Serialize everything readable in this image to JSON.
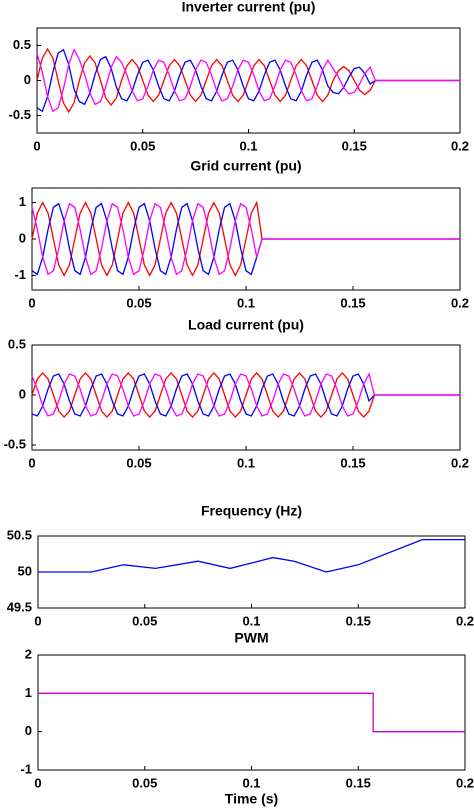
{
  "chart_data": [
    {
      "type": "line",
      "title": "Inverter current (pu)",
      "x": [
        0,
        0.0025,
        0.005,
        0.0075,
        0.01,
        0.0125,
        0.015,
        0.0175,
        0.02,
        0.0225,
        0.025,
        0.0275,
        0.03,
        0.0325,
        0.035,
        0.0375,
        0.04,
        0.0425,
        0.045,
        0.0475,
        0.05,
        0.0525,
        0.055,
        0.0575,
        0.06,
        0.0625,
        0.065,
        0.0675,
        0.07,
        0.0725,
        0.075,
        0.0775,
        0.08,
        0.0825,
        0.085,
        0.0875,
        0.09,
        0.0925,
        0.095,
        0.0975,
        0.1,
        0.1025,
        0.105,
        0.1075,
        0.11,
        0.1125,
        0.115,
        0.1175,
        0.12,
        0.1225,
        0.125,
        0.1275,
        0.13,
        0.1325,
        0.135,
        0.1375,
        0.14,
        0.1425,
        0.145,
        0.1475,
        0.15,
        0.1525,
        0.155,
        0.1575,
        0.16,
        0.1625,
        0.165,
        0.1675,
        0.17,
        0.1725,
        0.175,
        0.1775,
        0.18,
        0.1825,
        0.185,
        0.1875,
        0.19,
        0.1925,
        0.195,
        0.1975,
        0.2
      ],
      "series": [
        {
          "color": "#ff0000",
          "values": [
            0,
            0.32,
            0.45,
            0.32,
            0,
            -0.32,
            -0.45,
            -0.32,
            0,
            0.25,
            0.35,
            0.25,
            0,
            -0.25,
            -0.35,
            -0.25,
            0,
            0.21,
            0.3,
            0.21,
            0,
            -0.21,
            -0.3,
            -0.21,
            0,
            0.21,
            0.3,
            0.21,
            0,
            -0.21,
            -0.3,
            -0.21,
            0,
            0.21,
            0.3,
            0.21,
            0,
            -0.21,
            -0.3,
            -0.21,
            0,
            0.21,
            0.3,
            0.21,
            0,
            -0.21,
            -0.3,
            -0.21,
            0,
            0.21,
            0.3,
            0.21,
            0,
            -0.21,
            -0.3,
            -0.21,
            0,
            0.14,
            0.2,
            0.14,
            0,
            -0.14,
            -0.2,
            -0.14,
            0,
            0,
            0,
            0,
            0,
            0,
            0,
            0,
            0,
            0,
            0,
            0,
            0,
            0,
            0,
            0,
            0
          ]
        },
        {
          "color": "#0000ff",
          "values": [
            -0.39,
            -0.44,
            -0.23,
            0.12,
            0.39,
            0.44,
            0.23,
            -0.12,
            -0.3,
            -0.34,
            -0.18,
            0.09,
            0.3,
            0.34,
            0.18,
            -0.09,
            -0.26,
            -0.29,
            -0.15,
            0.08,
            0.26,
            0.29,
            0.15,
            -0.08,
            -0.26,
            -0.29,
            -0.15,
            0.08,
            0.26,
            0.29,
            0.15,
            -0.08,
            -0.26,
            -0.29,
            -0.15,
            0.08,
            0.26,
            0.29,
            0.15,
            -0.08,
            -0.26,
            -0.29,
            -0.15,
            0.08,
            0.26,
            0.29,
            0.15,
            -0.08,
            -0.26,
            -0.29,
            -0.15,
            0.08,
            0.26,
            0.29,
            0.15,
            -0.08,
            -0.17,
            -0.19,
            -0.1,
            0.05,
            0.17,
            0.19,
            0.1,
            -0.05,
            0,
            0,
            0,
            0,
            0,
            0,
            0,
            0,
            0,
            0,
            0,
            0,
            0,
            0,
            0,
            0,
            0
          ]
        },
        {
          "color": "#ff00ff",
          "values": [
            0.39,
            0.12,
            -0.23,
            -0.44,
            -0.39,
            -0.12,
            0.23,
            0.44,
            0.3,
            0.09,
            -0.18,
            -0.34,
            -0.3,
            -0.09,
            0.18,
            0.34,
            0.26,
            0.08,
            -0.15,
            -0.29,
            -0.26,
            -0.08,
            0.15,
            0.29,
            0.26,
            0.08,
            -0.15,
            -0.29,
            -0.26,
            -0.08,
            0.15,
            0.29,
            0.26,
            0.08,
            -0.15,
            -0.29,
            -0.26,
            -0.08,
            0.15,
            0.29,
            0.26,
            0.08,
            -0.15,
            -0.29,
            -0.26,
            -0.08,
            0.15,
            0.29,
            0.26,
            0.08,
            -0.15,
            -0.29,
            -0.26,
            -0.08,
            0.15,
            0.29,
            0.17,
            0.05,
            -0.1,
            -0.19,
            -0.17,
            -0.05,
            0.1,
            0.19,
            0,
            0,
            0,
            0,
            0,
            0,
            0,
            0,
            0,
            0,
            0,
            0,
            0,
            0,
            0,
            0,
            0
          ]
        }
      ],
      "xlim": [
        0,
        0.2
      ],
      "xticks": [
        0,
        0.05,
        0.1,
        0.15,
        0.2
      ],
      "ylim": [
        -0.75,
        0.75
      ],
      "yticks": [
        -0.5,
        0,
        0.5
      ]
    },
    {
      "type": "line",
      "title": "Grid current (pu)",
      "x": [
        0,
        0.0025,
        0.005,
        0.0075,
        0.01,
        0.0125,
        0.015,
        0.0175,
        0.02,
        0.0225,
        0.025,
        0.0275,
        0.03,
        0.0325,
        0.035,
        0.0375,
        0.04,
        0.0425,
        0.045,
        0.0475,
        0.05,
        0.0525,
        0.055,
        0.0575,
        0.06,
        0.0625,
        0.065,
        0.0675,
        0.07,
        0.0725,
        0.075,
        0.0775,
        0.08,
        0.0825,
        0.085,
        0.0875,
        0.09,
        0.0925,
        0.095,
        0.0975,
        0.1,
        0.1025,
        0.105,
        0.1075,
        0.11,
        0.1125,
        0.115,
        0.1175,
        0.12,
        0.1225,
        0.125,
        0.1275,
        0.13,
        0.1325,
        0.135,
        0.1375,
        0.14,
        0.1425,
        0.145,
        0.1475,
        0.15,
        0.1525,
        0.155,
        0.1575,
        0.16,
        0.1625,
        0.165,
        0.1675,
        0.17,
        0.1725,
        0.175,
        0.1775,
        0.18,
        0.1825,
        0.185,
        0.1875,
        0.19,
        0.1925,
        0.195,
        0.1975,
        0.2
      ],
      "series": [
        {
          "color": "#ff0000",
          "values": [
            0,
            0.71,
            1,
            0.71,
            0,
            -0.71,
            -1,
            -0.71,
            0,
            0.71,
            1,
            0.71,
            0,
            -0.71,
            -1,
            -0.71,
            0,
            0.71,
            1,
            0.71,
            0,
            -0.71,
            -1,
            -0.71,
            0,
            0.71,
            1,
            0.71,
            0,
            -0.71,
            -1,
            -0.71,
            0,
            0.71,
            1,
            0.71,
            0,
            -0.71,
            -1,
            -0.71,
            0,
            0.71,
            1,
            0,
            0,
            0,
            0,
            0,
            0,
            0,
            0,
            0,
            0,
            0,
            0,
            0,
            0,
            0,
            0,
            0,
            0,
            0,
            0,
            0,
            0,
            0,
            0,
            0,
            0,
            0,
            0,
            0,
            0,
            0,
            0,
            0,
            0,
            0,
            0,
            0,
            0
          ]
        },
        {
          "color": "#0000ff",
          "values": [
            -0.87,
            -0.97,
            -0.5,
            0.26,
            0.87,
            0.97,
            0.5,
            -0.26,
            -0.87,
            -0.97,
            -0.5,
            0.26,
            0.87,
            0.97,
            0.5,
            -0.26,
            -0.87,
            -0.97,
            -0.5,
            0.26,
            0.87,
            0.97,
            0.5,
            -0.26,
            -0.87,
            -0.97,
            -0.5,
            0.26,
            0.87,
            0.97,
            0.5,
            -0.26,
            -0.87,
            -0.97,
            -0.5,
            0.26,
            0.87,
            0.97,
            0.5,
            -0.26,
            -0.87,
            -0.97,
            -0.5,
            0,
            0,
            0,
            0,
            0,
            0,
            0,
            0,
            0,
            0,
            0,
            0,
            0,
            0,
            0,
            0,
            0,
            0,
            0,
            0,
            0,
            0,
            0,
            0,
            0,
            0,
            0,
            0,
            0,
            0,
            0,
            0,
            0,
            0,
            0,
            0,
            0,
            0
          ]
        },
        {
          "color": "#ff00ff",
          "values": [
            0.87,
            0.26,
            -0.5,
            -0.97,
            -0.87,
            -0.26,
            0.5,
            0.97,
            0.87,
            0.26,
            -0.5,
            -0.97,
            -0.87,
            -0.26,
            0.5,
            0.97,
            0.87,
            0.26,
            -0.5,
            -0.97,
            -0.87,
            -0.26,
            0.5,
            0.97,
            0.87,
            0.26,
            -0.5,
            -0.97,
            -0.87,
            -0.26,
            0.5,
            0.97,
            0.87,
            0.26,
            -0.5,
            -0.97,
            -0.87,
            -0.26,
            0.5,
            0.97,
            0.87,
            0.26,
            -0.5,
            0,
            0,
            0,
            0,
            0,
            0,
            0,
            0,
            0,
            0,
            0,
            0,
            0,
            0,
            0,
            0,
            0,
            0,
            0,
            0,
            0,
            0,
            0,
            0,
            0,
            0,
            0,
            0,
            0,
            0,
            0,
            0,
            0,
            0,
            0,
            0,
            0,
            0
          ]
        }
      ],
      "xlim": [
        0,
        0.2
      ],
      "xticks": [
        0,
        0.05,
        0.1,
        0.15,
        0.2
      ],
      "ylim": [
        -1.4,
        1.4
      ],
      "yticks": [
        -1,
        0,
        1
      ]
    },
    {
      "type": "line",
      "title": "Load current (pu)",
      "x": [
        0,
        0.0025,
        0.005,
        0.0075,
        0.01,
        0.0125,
        0.015,
        0.0175,
        0.02,
        0.0225,
        0.025,
        0.0275,
        0.03,
        0.0325,
        0.035,
        0.0375,
        0.04,
        0.0425,
        0.045,
        0.0475,
        0.05,
        0.0525,
        0.055,
        0.0575,
        0.06,
        0.0625,
        0.065,
        0.0675,
        0.07,
        0.0725,
        0.075,
        0.0775,
        0.08,
        0.0825,
        0.085,
        0.0875,
        0.09,
        0.0925,
        0.095,
        0.0975,
        0.1,
        0.1025,
        0.105,
        0.1075,
        0.11,
        0.1125,
        0.115,
        0.1175,
        0.12,
        0.1225,
        0.125,
        0.1275,
        0.13,
        0.1325,
        0.135,
        0.1375,
        0.14,
        0.1425,
        0.145,
        0.1475,
        0.15,
        0.1525,
        0.155,
        0.1575,
        0.16,
        0.1625,
        0.165,
        0.1675,
        0.17,
        0.1725,
        0.175,
        0.1775,
        0.18,
        0.1825,
        0.185,
        0.1875,
        0.19,
        0.1925,
        0.195,
        0.1975,
        0.2
      ],
      "series": [
        {
          "color": "#ff0000",
          "values": [
            0,
            0.16,
            0.22,
            0.16,
            0,
            -0.16,
            -0.22,
            -0.16,
            0,
            0.16,
            0.22,
            0.16,
            0,
            -0.16,
            -0.22,
            -0.16,
            0,
            0.16,
            0.22,
            0.16,
            0,
            -0.16,
            -0.22,
            -0.16,
            0,
            0.16,
            0.22,
            0.16,
            0,
            -0.16,
            -0.22,
            -0.16,
            0,
            0.16,
            0.22,
            0.16,
            0,
            -0.16,
            -0.22,
            -0.16,
            0,
            0.16,
            0.22,
            0.16,
            0,
            -0.16,
            -0.22,
            -0.16,
            0,
            0.16,
            0.22,
            0.16,
            0,
            -0.16,
            -0.22,
            -0.16,
            0,
            0.16,
            0.22,
            0.16,
            0,
            -0.16,
            -0.22,
            -0.16,
            0,
            0,
            0,
            0,
            0,
            0,
            0,
            0,
            0,
            0,
            0,
            0,
            0,
            0,
            0,
            0,
            0
          ]
        },
        {
          "color": "#0000ff",
          "values": [
            -0.19,
            -0.21,
            -0.11,
            0.06,
            0.19,
            0.21,
            0.11,
            -0.06,
            -0.19,
            -0.21,
            -0.11,
            0.06,
            0.19,
            0.21,
            0.11,
            -0.06,
            -0.19,
            -0.21,
            -0.11,
            0.06,
            0.19,
            0.21,
            0.11,
            -0.06,
            -0.19,
            -0.21,
            -0.11,
            0.06,
            0.19,
            0.21,
            0.11,
            -0.06,
            -0.19,
            -0.21,
            -0.11,
            0.06,
            0.19,
            0.21,
            0.11,
            -0.06,
            -0.19,
            -0.21,
            -0.11,
            0.06,
            0.19,
            0.21,
            0.11,
            -0.06,
            -0.19,
            -0.21,
            -0.11,
            0.06,
            0.19,
            0.21,
            0.11,
            -0.06,
            -0.19,
            -0.21,
            -0.11,
            0.06,
            0.19,
            0.21,
            0.11,
            -0.06,
            0,
            0,
            0,
            0,
            0,
            0,
            0,
            0,
            0,
            0,
            0,
            0,
            0,
            0,
            0,
            0,
            0
          ]
        },
        {
          "color": "#ff00ff",
          "values": [
            0.19,
            0.06,
            -0.11,
            -0.21,
            -0.19,
            -0.06,
            0.11,
            0.21,
            0.19,
            0.06,
            -0.11,
            -0.21,
            -0.19,
            -0.06,
            0.11,
            0.21,
            0.19,
            0.06,
            -0.11,
            -0.21,
            -0.19,
            -0.06,
            0.11,
            0.21,
            0.19,
            0.06,
            -0.11,
            -0.21,
            -0.19,
            -0.06,
            0.11,
            0.21,
            0.19,
            0.06,
            -0.11,
            -0.21,
            -0.19,
            -0.06,
            0.11,
            0.21,
            0.19,
            0.06,
            -0.11,
            -0.21,
            -0.19,
            -0.06,
            0.11,
            0.21,
            0.19,
            0.06,
            -0.11,
            -0.21,
            -0.19,
            -0.06,
            0.11,
            0.21,
            0.19,
            0.06,
            -0.11,
            -0.21,
            -0.19,
            -0.06,
            0.11,
            0.21,
            0,
            0,
            0,
            0,
            0,
            0,
            0,
            0,
            0,
            0,
            0,
            0,
            0,
            0,
            0,
            0,
            0
          ]
        }
      ],
      "xlim": [
        0,
        0.2
      ],
      "xticks": [
        0,
        0.05,
        0.1,
        0.15,
        0.2
      ],
      "ylim": [
        -0.55,
        0.5
      ],
      "yticks": [
        -0.5,
        0,
        0.5
      ]
    },
    {
      "type": "line",
      "title": "Frequency (Hz)",
      "x": [
        0,
        0.025,
        0.04,
        0.055,
        0.075,
        0.09,
        0.11,
        0.12,
        0.135,
        0.15,
        0.18,
        0.2
      ],
      "series": [
        {
          "color": "#0000ff",
          "values": [
            50,
            50,
            50.1,
            50.05,
            50.15,
            50.05,
            50.2,
            50.15,
            50,
            50.1,
            50.45,
            50.45
          ]
        }
      ],
      "xlim": [
        0,
        0.2
      ],
      "xticks": [
        0,
        0.05,
        0.1,
        0.15,
        0.2
      ],
      "ylim": [
        49.5,
        50.5
      ],
      "yticks": [
        49.5,
        50,
        50.5
      ]
    },
    {
      "type": "line",
      "title": "PWM",
      "xlabel": "Time (s)",
      "x": [
        0,
        0.157,
        0.157,
        0.2
      ],
      "series": [
        {
          "color": "#cc00cc",
          "values": [
            1,
            1,
            0,
            0
          ]
        }
      ],
      "xlim": [
        0,
        0.2
      ],
      "xticks": [
        0,
        0.05,
        0.1,
        0.15,
        0.2
      ],
      "ylim": [
        -1,
        2
      ],
      "yticks": [
        -1,
        0,
        1,
        2
      ]
    }
  ]
}
